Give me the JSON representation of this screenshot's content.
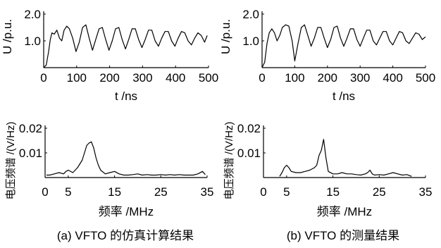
{
  "chart_data": [
    {
      "id": "a-top",
      "type": "line",
      "xlabel": "t /ns",
      "ylabel": "U /p.u.",
      "xlim": [
        0,
        500
      ],
      "ylim": [
        0,
        2.0
      ],
      "xticks": [
        0,
        100,
        200,
        300,
        400,
        500
      ],
      "xtick_labels": [
        "0",
        "100",
        "200",
        "300",
        "400",
        "500"
      ],
      "yticks": [
        1.0,
        2.0
      ],
      "ytick_labels": [
        "1.0",
        "2.0"
      ],
      "series": [
        {
          "x": [
            0,
            8,
            15,
            20,
            25,
            32,
            40,
            48,
            55,
            62,
            70,
            78,
            88,
            98,
            108,
            118,
            128,
            138,
            148,
            158,
            168,
            178,
            188,
            198,
            208,
            218,
            228,
            238,
            248,
            258,
            268,
            278,
            288,
            298,
            308,
            318,
            328,
            338,
            348,
            358,
            368,
            378,
            388,
            398,
            408,
            418,
            428,
            438,
            448,
            458,
            468,
            478,
            488,
            496
          ],
          "y": [
            0.0,
            0.1,
            0.6,
            1.05,
            1.3,
            1.25,
            1.4,
            1.1,
            1.0,
            1.4,
            1.55,
            1.45,
            1.1,
            0.6,
            0.95,
            1.5,
            1.6,
            1.1,
            0.65,
            1.05,
            1.45,
            1.5,
            1.05,
            0.65,
            1.0,
            1.45,
            1.5,
            1.05,
            0.7,
            1.05,
            1.45,
            1.45,
            1.05,
            0.75,
            1.05,
            1.4,
            1.4,
            1.0,
            0.8,
            1.1,
            1.35,
            1.35,
            1.0,
            0.8,
            1.1,
            1.35,
            1.3,
            1.0,
            0.85,
            1.1,
            1.3,
            1.2,
            0.95,
            1.2
          ]
        }
      ]
    },
    {
      "id": "b-top",
      "type": "line",
      "xlabel": "t /ns",
      "ylabel": "U /p.u.",
      "xlim": [
        0,
        500
      ],
      "ylim": [
        0,
        2.0
      ],
      "xticks": [
        0,
        100,
        200,
        300,
        400,
        500
      ],
      "xtick_labels": [
        "0",
        "100",
        "200",
        "300",
        "400",
        "500"
      ],
      "yticks": [
        1.0,
        2.0
      ],
      "ytick_labels": [
        "1.0",
        "2.0"
      ],
      "series": [
        {
          "x": [
            0,
            8,
            15,
            22,
            30,
            38,
            46,
            54,
            62,
            72,
            82,
            92,
            100,
            110,
            120,
            130,
            140,
            150,
            160,
            170,
            180,
            190,
            200,
            210,
            220,
            230,
            240,
            250,
            260,
            270,
            280,
            290,
            300,
            310,
            320,
            330,
            340,
            350,
            360,
            370,
            380,
            390,
            400,
            410,
            420,
            430,
            440,
            450,
            460,
            470,
            480,
            490,
            500
          ],
          "y": [
            0.0,
            0.2,
            0.9,
            1.3,
            1.45,
            1.3,
            1.0,
            1.2,
            1.5,
            1.6,
            1.55,
            1.0,
            0.25,
            0.9,
            1.5,
            1.6,
            1.2,
            0.8,
            1.1,
            1.5,
            1.5,
            1.1,
            0.75,
            1.05,
            1.5,
            1.55,
            1.1,
            0.8,
            1.1,
            1.45,
            1.45,
            1.05,
            0.8,
            1.1,
            1.4,
            1.4,
            1.0,
            0.85,
            1.1,
            1.35,
            1.35,
            1.0,
            0.85,
            1.1,
            1.35,
            1.3,
            1.0,
            0.9,
            1.1,
            1.3,
            1.25,
            1.05,
            1.15
          ]
        }
      ]
    },
    {
      "id": "a-bottom",
      "type": "line",
      "xlabel": "频率 /MHz",
      "ylabel": "电压频谱 /(V/Hz)",
      "xlim": [
        0,
        35
      ],
      "ylim": [
        0,
        0.02
      ],
      "xticks": [
        0,
        5,
        15,
        25,
        35
      ],
      "xtick_labels": [
        "0",
        "5",
        "15",
        "25",
        "35"
      ],
      "yticks": [
        0.01,
        0.02
      ],
      "ytick_labels": [
        "0.01",
        "0.02"
      ],
      "series": [
        {
          "x": [
            0.3,
            1,
            2,
            3,
            4,
            4.5,
            5,
            6,
            7,
            8,
            8.5,
            9,
            9.5,
            10,
            10.5,
            11,
            11.5,
            12,
            13,
            14,
            15,
            16,
            17,
            18,
            19,
            20,
            21,
            22,
            23,
            24,
            25,
            26,
            27,
            28,
            29,
            30,
            31,
            32,
            33,
            34,
            34.6
          ],
          "y": [
            0.001,
            0.001,
            0.0015,
            0.002,
            0.0015,
            0.0025,
            0.003,
            0.002,
            0.004,
            0.007,
            0.01,
            0.013,
            0.014,
            0.0145,
            0.012,
            0.008,
            0.005,
            0.003,
            0.0015,
            0.002,
            0.0025,
            0.0015,
            0.001,
            0.001,
            0.0012,
            0.0015,
            0.001,
            0.0012,
            0.001,
            0.001,
            0.0012,
            0.001,
            0.0012,
            0.001,
            0.0012,
            0.001,
            0.001,
            0.001,
            0.0015,
            0.0025,
            0.0012
          ]
        }
      ]
    },
    {
      "id": "b-bottom",
      "type": "line",
      "xlabel": "频率 /MHz",
      "ylabel": "电压频谱 /(V/Hz)",
      "xlim": [
        0,
        35
      ],
      "ylim": [
        0,
        0.02
      ],
      "xticks": [
        0,
        5,
        15,
        25,
        35
      ],
      "xtick_labels": [
        "0",
        "5",
        "15",
        "25",
        "35"
      ],
      "yticks": [
        0.01,
        0.02
      ],
      "ytick_labels": [
        "0.01",
        "0.02"
      ],
      "series": [
        {
          "x": [
            3.5,
            4,
            4.5,
            5,
            5.5,
            6,
            7,
            8,
            9,
            10,
            11,
            11.5,
            12,
            12.5,
            13,
            13.5,
            14,
            15,
            16,
            17,
            18,
            19,
            20,
            21,
            22,
            22.5,
            23,
            23.5,
            24,
            25,
            26,
            27,
            28,
            29,
            30,
            31,
            32
          ],
          "y": [
            0.0005,
            0.002,
            0.004,
            0.005,
            0.004,
            0.0025,
            0.002,
            0.002,
            0.0025,
            0.003,
            0.004,
            0.005,
            0.009,
            0.011,
            0.0155,
            0.008,
            0.0025,
            0.0015,
            0.0015,
            0.002,
            0.0015,
            0.0015,
            0.0012,
            0.001,
            0.0015,
            0.002,
            0.003,
            0.0015,
            0.001,
            0.0012,
            0.001,
            0.0015,
            0.002,
            0.0015,
            0.001,
            0.0012,
            0.0005
          ]
        }
      ]
    }
  ],
  "captions": {
    "a": "(a) VFTO 的仿真计算结果",
    "b": "(b) VFTO 的测量结果"
  }
}
